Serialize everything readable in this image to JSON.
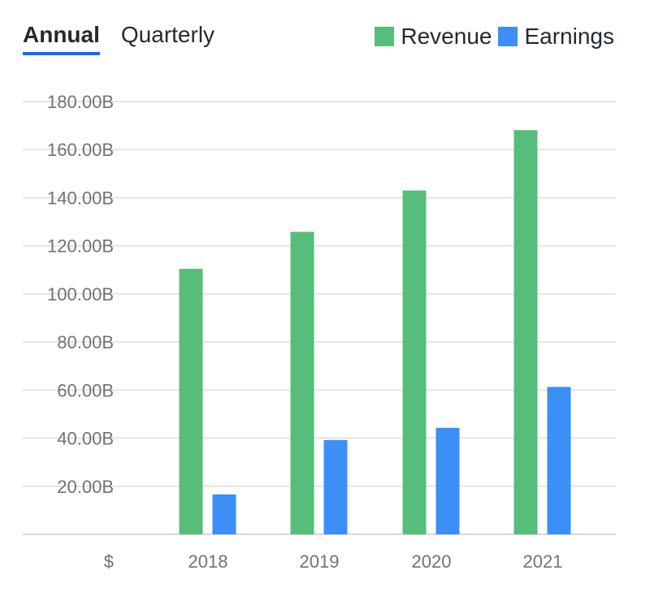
{
  "tabs": [
    {
      "label": "Annual",
      "active": true
    },
    {
      "label": "Quarterly",
      "active": false
    }
  ],
  "colors": {
    "revenue": "#57bd7b",
    "earnings": "#3b8ff7",
    "grid": "#e3e5e8",
    "tick_text": "#6f7379",
    "accent": "#0f69ff"
  },
  "chart_data": {
    "type": "bar",
    "categories": [
      "2018",
      "2019",
      "2020",
      "2021"
    ],
    "series": [
      {
        "name": "Revenue",
        "values": [
          110.4,
          125.8,
          143.0,
          168.1
        ]
      },
      {
        "name": "Earnings",
        "values": [
          16.6,
          39.2,
          44.3,
          61.3
        ]
      }
    ],
    "yticks": [
      20,
      40,
      60,
      80,
      100,
      120,
      140,
      160,
      180
    ],
    "ytick_labels": [
      "20.00B",
      "40.00B",
      "60.00B",
      "80.00B",
      "100.00B",
      "120.00B",
      "140.00B",
      "160.00B",
      "180.00B"
    ],
    "ylim": [
      0,
      180
    ],
    "ylabel": "$",
    "xlabel": "",
    "grid": true,
    "legend": "top-right"
  }
}
